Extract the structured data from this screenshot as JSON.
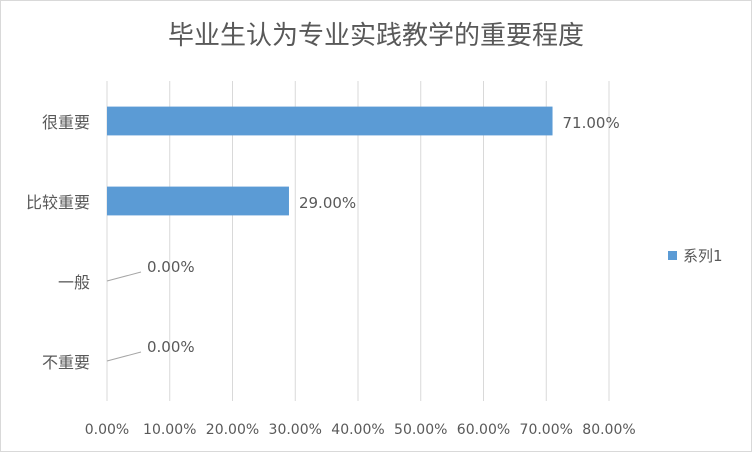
{
  "chart_data": {
    "type": "bar",
    "orientation": "horizontal",
    "title": "毕业生认为专业实践教学的重要程度",
    "categories": [
      "很重要",
      "比较重要",
      "一般",
      "不重要"
    ],
    "series": [
      {
        "name": "系列1",
        "values": [
          71.0,
          29.0,
          0.0,
          0.0
        ]
      }
    ],
    "data_labels": [
      "71.00%",
      "29.00%",
      "0.00%",
      "0.00%"
    ],
    "x_ticks": [
      0,
      10,
      20,
      30,
      40,
      50,
      60,
      70,
      80
    ],
    "x_tick_labels": [
      "0.00%",
      "10.00%",
      "20.00%",
      "30.00%",
      "40.00%",
      "50.00%",
      "60.00%",
      "70.00%",
      "80.00%"
    ],
    "xlim": [
      0,
      80
    ],
    "xlabel": "",
    "ylabel": "",
    "grid": true,
    "legend_position": "right",
    "bar_color": "#5b9bd5",
    "grid_color": "#d9d9d9",
    "text_color": "#595959"
  }
}
